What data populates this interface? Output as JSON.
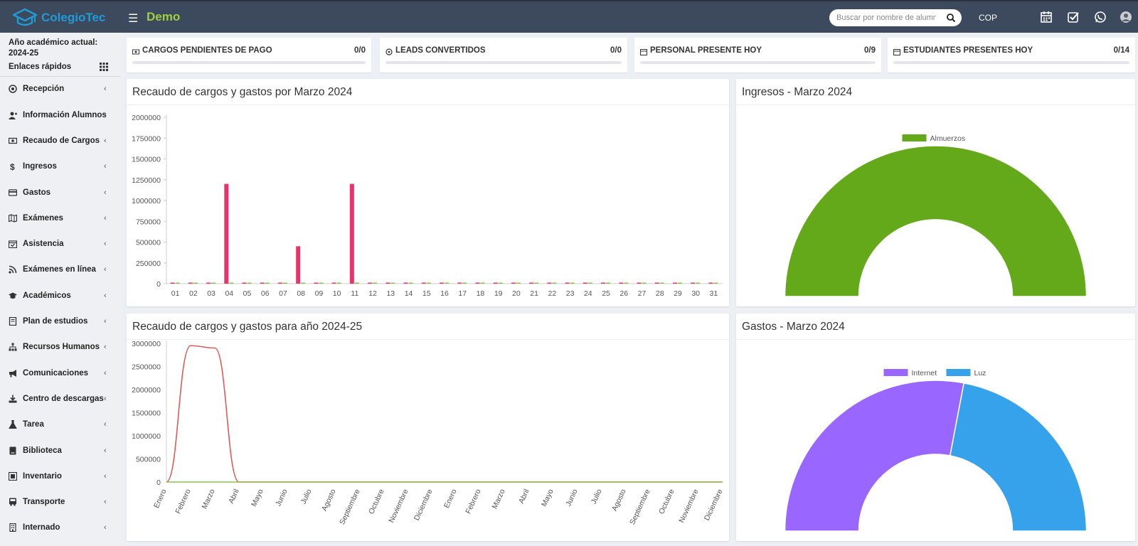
{
  "header": {
    "brand": "ColegioTec",
    "site_name": "Demo",
    "search_placeholder": "Buscar por nombre de alumno",
    "currency": "COP",
    "colors": {
      "bar": "#3d4a5d",
      "brand": "#1f9bd7",
      "site_name": "#9dd13f"
    },
    "icons": [
      "calendar-icon",
      "check-square-icon",
      "whatsapp-icon",
      "user-avatar-icon"
    ]
  },
  "sidebar": {
    "year_label": "Año académico actual:",
    "year_value": "2024-25",
    "quick_links": "Enlaces rápidos",
    "items": [
      {
        "label": "Recepción",
        "icon": "reception-icon"
      },
      {
        "label": "Información Alumnos",
        "icon": "user-plus-icon"
      },
      {
        "label": "Recaudo de Cargos",
        "icon": "money-icon"
      },
      {
        "label": "Ingresos",
        "icon": "dollar-icon"
      },
      {
        "label": "Gastos",
        "icon": "credit-card-icon"
      },
      {
        "label": "Exámenes",
        "icon": "map-icon"
      },
      {
        "label": "Asistencia",
        "icon": "calendar-check-icon"
      },
      {
        "label": "Exámenes en línea",
        "icon": "rss-icon"
      },
      {
        "label": "Académicos",
        "icon": "graduation-cap-icon"
      },
      {
        "label": "Plan de estudios",
        "icon": "book-icon"
      },
      {
        "label": "Recursos Humanos",
        "icon": "sitemap-icon"
      },
      {
        "label": "Comunicaciones",
        "icon": "bullhorn-icon"
      },
      {
        "label": "Centro de descargas",
        "icon": "download-icon"
      },
      {
        "label": "Tarea",
        "icon": "flask-icon"
      },
      {
        "label": "Biblioteca",
        "icon": "library-book-icon"
      },
      {
        "label": "Inventario",
        "icon": "inventory-icon"
      },
      {
        "label": "Transporte",
        "icon": "bus-icon"
      },
      {
        "label": "Internado",
        "icon": "building-icon"
      }
    ]
  },
  "infoboxes": [
    {
      "label": "CARGOS PENDIENTES DE PAGO",
      "value": "0/0",
      "icon": "money-icon"
    },
    {
      "label": "LEADS CONVERTIDOS",
      "value": "0/0",
      "icon": "reception-icon"
    },
    {
      "label": "PERSONAL PRESENTE HOY",
      "value": "0/9",
      "icon": "calendar-check-icon"
    },
    {
      "label": "ESTUDIANTES PRESENTES HOY",
      "value": "0/14",
      "icon": "calendar-check-icon"
    }
  ],
  "panels": {
    "monthly": {
      "title": "Recaudo de cargos y gastos por Marzo 2024"
    },
    "yearly": {
      "title": "Recaudo de cargos y gastos para año 2024-25"
    },
    "income": {
      "title": "Ingresos - Marzo 2024"
    },
    "expenses": {
      "title": "Gastos - Marzo 2024"
    }
  },
  "chart_data": [
    {
      "type": "bar",
      "title": "Recaudo de cargos y gastos por Marzo 2024",
      "categories": [
        "01",
        "02",
        "03",
        "04",
        "05",
        "06",
        "07",
        "08",
        "09",
        "10",
        "11",
        "12",
        "13",
        "14",
        "15",
        "16",
        "17",
        "18",
        "19",
        "20",
        "21",
        "22",
        "23",
        "24",
        "25",
        "26",
        "27",
        "28",
        "29",
        "30",
        "31"
      ],
      "series": [
        {
          "color": "#e8336d",
          "values": [
            0,
            0,
            0,
            1200000,
            0,
            0,
            0,
            450000,
            0,
            0,
            1200000,
            0,
            0,
            0,
            0,
            0,
            0,
            0,
            0,
            0,
            0,
            0,
            0,
            0,
            0,
            0,
            0,
            0,
            0,
            0,
            0
          ]
        },
        {
          "color": "#8bc34a",
          "values": [
            0,
            0,
            0,
            0,
            0,
            0,
            0,
            0,
            0,
            0,
            0,
            0,
            0,
            0,
            0,
            0,
            0,
            0,
            0,
            0,
            0,
            0,
            0,
            0,
            0,
            0,
            0,
            0,
            0,
            0,
            0
          ]
        }
      ],
      "yticks": [
        "2000000",
        "1750000",
        "1500000",
        "1250000",
        "1000000",
        "750000",
        "500000",
        "250000",
        "0"
      ],
      "ylim": [
        0,
        2000000
      ],
      "grid": false
    },
    {
      "type": "line",
      "title": "Recaudo de cargos y gastos para año 2024-25",
      "categories": [
        "Enero",
        "Febrero",
        "Marzo",
        "Abril",
        "Mayo",
        "Junio",
        "Julio",
        "Agosto",
        "Septiembre",
        "Octubre",
        "Noviembre",
        "Diciembre",
        "Enero",
        "Febrero",
        "Marzo",
        "Abril",
        "Mayo",
        "Junio",
        "Julio",
        "Agosto",
        "Septiembre",
        "Octubre",
        "Noviembre",
        "Diciembre"
      ],
      "series": [
        {
          "color": "#e05a5a",
          "values": [
            0,
            2950000,
            2900000,
            0,
            0,
            0,
            0,
            0,
            0,
            0,
            0,
            0,
            0,
            0,
            0,
            0,
            0,
            0,
            0,
            0,
            0,
            0,
            0,
            0
          ]
        },
        {
          "color": "#8bc34a",
          "values": [
            0,
            0,
            0,
            0,
            0,
            0,
            0,
            0,
            0,
            0,
            0,
            0,
            0,
            0,
            0,
            0,
            0,
            0,
            0,
            0,
            0,
            0,
            0,
            0
          ]
        }
      ],
      "yticks": [
        "3000000",
        "2500000",
        "2000000",
        "1500000",
        "1000000",
        "500000",
        "0"
      ],
      "ylim": [
        0,
        3000000
      ],
      "grid": false
    },
    {
      "type": "pie",
      "title": "Ingresos - Marzo 2024",
      "variant": "half-doughnut",
      "legend_position": "top",
      "slices": [
        {
          "label": "Almuerzos",
          "value": 100,
          "color": "#64a919"
        }
      ]
    },
    {
      "type": "pie",
      "title": "Gastos - Marzo 2024",
      "variant": "half-doughnut",
      "legend_position": "top",
      "slices": [
        {
          "label": "Internet",
          "value": 56,
          "color": "#9966ff"
        },
        {
          "label": "Luz",
          "value": 44,
          "color": "#36a2eb"
        }
      ]
    }
  ]
}
